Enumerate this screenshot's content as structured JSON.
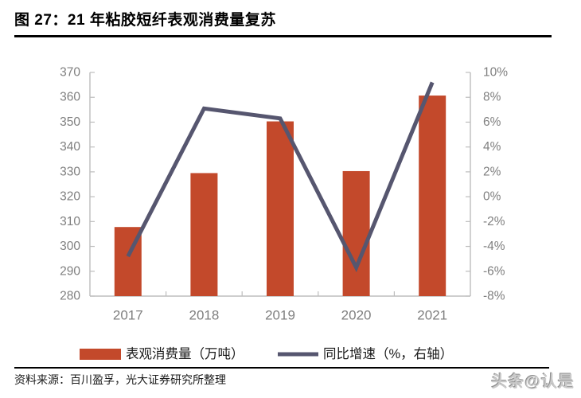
{
  "figure": {
    "title": "图 27：21 年粘胶短纤表观消费量复苏",
    "source_note": "资料来源：百川盈孚，光大证券研究所整理",
    "watermark": "头条@认是"
  },
  "colors": {
    "bar": "#c3492b",
    "line": "#56566f",
    "axis_line": "#bdbdbd",
    "tick_label": "#7f7f7f",
    "legend_text": "#1a1a1a"
  },
  "chart_data": {
    "type": "bar",
    "subtype": "bar+line dual axis",
    "categories": [
      "2017",
      "2018",
      "2019",
      "2020",
      "2021"
    ],
    "series": [
      {
        "name": "表观消费量（万吨）",
        "type": "bar",
        "axis": "left",
        "values": [
          307.8,
          329.5,
          350.3,
          330.3,
          360.7
        ]
      },
      {
        "name": "同比增速（%，右轴）",
        "type": "line",
        "axis": "right",
        "values": [
          -4.8,
          7.1,
          6.3,
          -5.7,
          9.2
        ]
      }
    ],
    "left_axis": {
      "min": 280,
      "max": 370,
      "step": 10,
      "tick_labels": [
        "280",
        "290",
        "300",
        "310",
        "320",
        "330",
        "340",
        "350",
        "360",
        "370"
      ]
    },
    "right_axis": {
      "min": -8,
      "max": 10,
      "step": 2,
      "tick_labels": [
        "-8%",
        "-6%",
        "-4%",
        "-2%",
        "0%",
        "2%",
        "4%",
        "6%",
        "8%",
        "10%"
      ]
    },
    "grid": "off",
    "legend_position": "bottom"
  }
}
